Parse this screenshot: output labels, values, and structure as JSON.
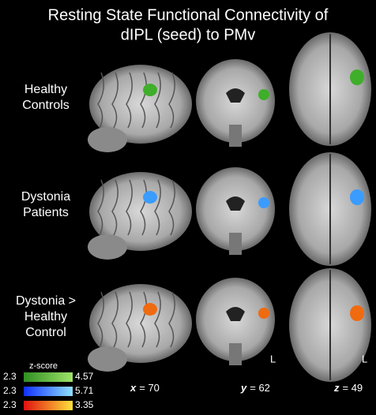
{
  "title_lines": [
    "Resting State Functional Connectivity of",
    "dIPL (seed) to PMv"
  ],
  "rows": [
    {
      "label_lines": [
        "Healthy",
        "Controls"
      ],
      "blob_color": "#3fae2a"
    },
    {
      "label_lines": [
        "Dystonia",
        "Patients"
      ],
      "blob_color": "#3a9cff"
    },
    {
      "label_lines": [
        "Dystonia >",
        "Healthy",
        "Control"
      ],
      "blob_color": "#f06a10"
    }
  ],
  "orientation_marks": [
    "L",
    "L"
  ],
  "slices": [
    {
      "axis": "x",
      "label": "= 70"
    },
    {
      "axis": "y",
      "label": "= 62"
    },
    {
      "axis": "z",
      "label": "= 49"
    }
  ],
  "colorbar_title": "z-score",
  "colorbars": [
    {
      "min": "2.3",
      "max": "4.57",
      "colors": [
        "#2f8f22",
        "#9fe36a"
      ]
    },
    {
      "min": "2.3",
      "max": "5.71",
      "colors": [
        "#1030ff",
        "#8fe0ff"
      ]
    },
    {
      "min": "2.3",
      "max": "3.35",
      "colors": [
        "#e01010",
        "#ffe23a"
      ]
    }
  ]
}
